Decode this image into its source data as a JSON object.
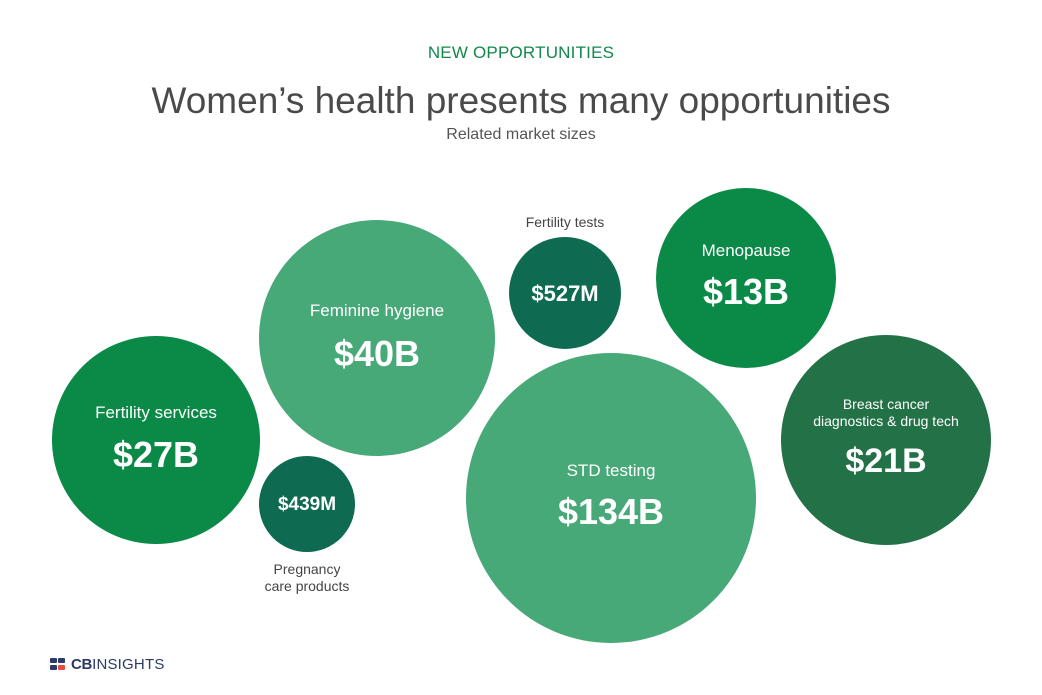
{
  "header": {
    "eyebrow": "NEW OPPORTUNITIES",
    "title": "Women’s health presents many opportunities",
    "subtitle": "Related market sizes"
  },
  "colors": {
    "eyebrow": "#12884a",
    "light_green": "#47a878",
    "dark_teal": "#0e6b52",
    "bright_green": "#0a8a46",
    "forest_green": "#237147",
    "outside_label": "#444444",
    "brand": "#2b3a67",
    "brand_accent": "#e74c3c"
  },
  "brand": {
    "name_bold": "CB",
    "name_regular": "INSIGHTS"
  },
  "chart_data": {
    "type": "bubble",
    "title": "Women’s health presents many opportunities",
    "subtitle": "Related market sizes",
    "items": [
      {
        "label": "Fertility services",
        "value_label": "$27B",
        "value_usd": 27000000000,
        "color": "#0a8a46",
        "label_position": "inside"
      },
      {
        "label": "Feminine hygiene",
        "value_label": "$40B",
        "value_usd": 40000000000,
        "color": "#47a878",
        "label_position": "inside"
      },
      {
        "label": "Pregnancy care products",
        "value_label": "$439M",
        "value_usd": 439000000,
        "color": "#0e6b52",
        "label_position": "below"
      },
      {
        "label": "Fertility tests",
        "value_label": "$527M",
        "value_usd": 527000000,
        "color": "#0e6b52",
        "label_position": "above"
      },
      {
        "label": "Menopause",
        "value_label": "$13B",
        "value_usd": 13000000000,
        "color": "#0a8a46",
        "label_position": "inside"
      },
      {
        "label": "STD testing",
        "value_label": "$134B",
        "value_usd": 134000000000,
        "color": "#47a878",
        "label_position": "inside"
      },
      {
        "label": "Breast cancer diagnostics & drug tech",
        "value_label": "$21B",
        "value_usd": 21000000000,
        "color": "#237147",
        "label_position": "inside"
      }
    ]
  }
}
